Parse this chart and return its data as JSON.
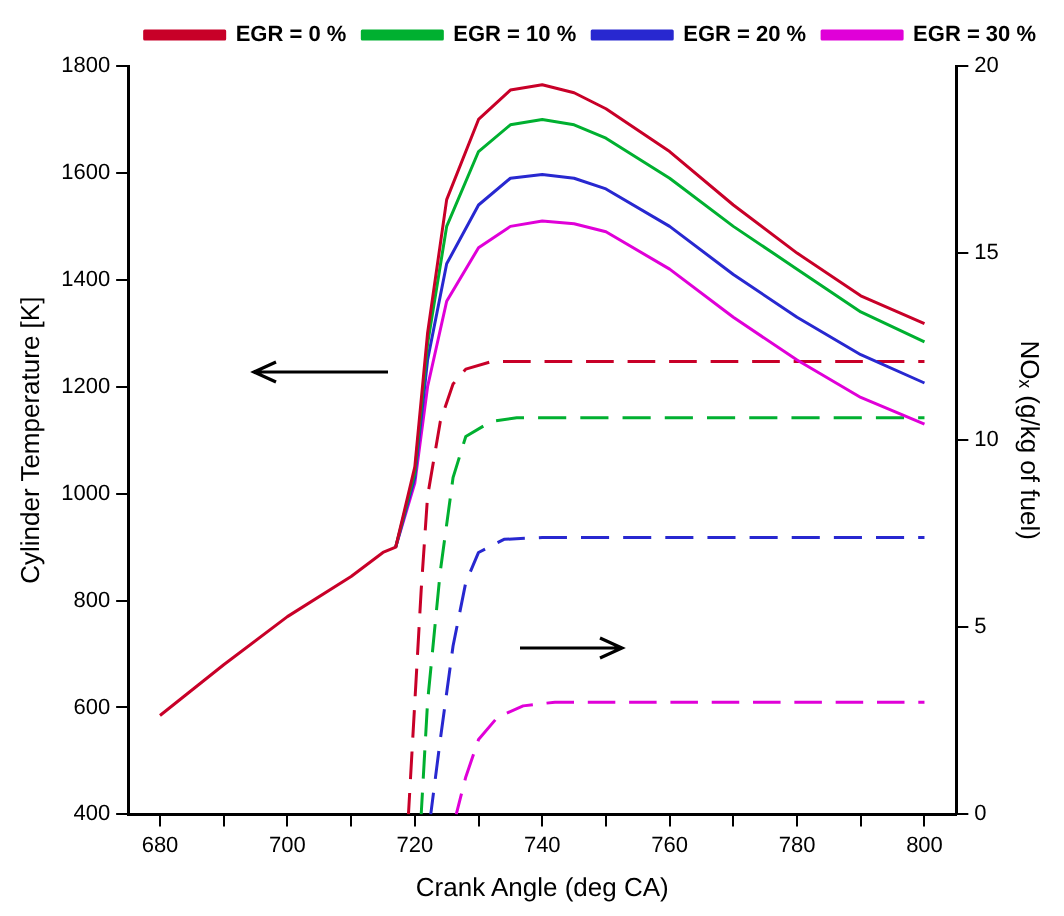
{
  "chart_data": {
    "type": "line",
    "xlabel": "Crank Angle (deg CA)",
    "ylabel": "Cylinder Temperature [K]",
    "y2label": "NOₓ (g/kg of fuel)",
    "xlim": [
      675,
      805
    ],
    "xticks": [
      680,
      {
        "value": 690,
        "label": null
      },
      700,
      {
        "value": 710,
        "label": null
      },
      720,
      {
        "value": 730,
        "label": null
      },
      740,
      {
        "value": 750,
        "label": null
      },
      760,
      {
        "value": 770,
        "label": null
      },
      780,
      {
        "value": 790,
        "label": null
      },
      800
    ],
    "ylim": [
      400,
      1800
    ],
    "yticks": [
      400,
      600,
      800,
      1000,
      1200,
      1400,
      1600,
      1800
    ],
    "y2lim": [
      0,
      20
    ],
    "y2ticks": [
      0,
      5,
      10,
      15,
      20
    ],
    "grid": false,
    "legend": "top right",
    "marker": "none",
    "series": [
      {
        "name": "EGR = 0 %",
        "color": "#c80028",
        "x": [
          680,
          690,
          700,
          710,
          715,
          717,
          720,
          722,
          725,
          730,
          735,
          740,
          745,
          750,
          760,
          770,
          780,
          790,
          800
        ],
        "values": [
          585,
          680,
          770,
          845,
          890,
          900,
          1050,
          1300,
          1550,
          1700,
          1755,
          1765,
          1750,
          1720,
          1640,
          1540,
          1450,
          1370,
          1318
        ]
      },
      {
        "name": "EGR = 10 %",
        "color": "#00b030",
        "x": [
          717,
          720,
          722,
          725,
          730,
          735,
          740,
          745,
          750,
          760,
          770,
          780,
          790,
          800
        ],
        "values": [
          900,
          1040,
          1280,
          1500,
          1640,
          1690,
          1700,
          1690,
          1665,
          1590,
          1500,
          1420,
          1340,
          1284
        ]
      },
      {
        "name": "EGR = 20 %",
        "color": "#2828d0",
        "x": [
          717,
          720,
          722,
          725,
          730,
          735,
          740,
          745,
          750,
          760,
          770,
          780,
          790,
          800
        ],
        "values": [
          900,
          1030,
          1250,
          1430,
          1540,
          1590,
          1597,
          1590,
          1570,
          1500,
          1410,
          1330,
          1260,
          1207
        ]
      },
      {
        "name": "EGR = 30 %",
        "color": "#e000d8",
        "x": [
          717,
          720,
          722,
          725,
          730,
          735,
          740,
          745,
          750,
          760,
          770,
          780,
          790,
          800
        ],
        "values": [
          900,
          1020,
          1200,
          1360,
          1460,
          1500,
          1510,
          1505,
          1490,
          1420,
          1330,
          1250,
          1180,
          1130
        ]
      },
      {
        "color": "#c80028",
        "axis": "y2",
        "line_style": "dashed",
        "x": [
          719,
          720,
          721,
          722,
          724,
          726,
          728,
          732,
          800
        ],
        "values": [
          0,
          3,
          6,
          8.5,
          10.5,
          11.5,
          11.9,
          12.1,
          12.1
        ]
      },
      {
        "color": "#00b030",
        "axis": "y2",
        "line_style": "dashed",
        "x": [
          721,
          722,
          724,
          726,
          728,
          732,
          736,
          800
        ],
        "values": [
          0,
          3,
          6.5,
          9,
          10.1,
          10.5,
          10.6,
          10.6
        ]
      },
      {
        "color": "#2828d0",
        "axis": "y2",
        "line_style": "dashed",
        "x": [
          722.5,
          724,
          726,
          728,
          730,
          734,
          740,
          800
        ],
        "values": [
          0,
          2,
          4.5,
          6.2,
          7,
          7.35,
          7.4,
          7.4
        ]
      },
      {
        "color": "#e000d8",
        "axis": "y2",
        "line_style": "dashed",
        "x": [
          726.5,
          728,
          730,
          733,
          737,
          742,
          800
        ],
        "values": [
          0,
          1,
          2,
          2.6,
          2.9,
          3,
          3
        ]
      }
    ]
  }
}
